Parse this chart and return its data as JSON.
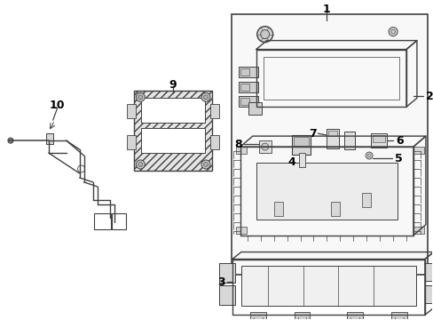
{
  "background_color": "#ffffff",
  "line_color": "#404040",
  "label_color": "#000000",
  "fig_width": 4.89,
  "fig_height": 3.6,
  "dpi": 100
}
